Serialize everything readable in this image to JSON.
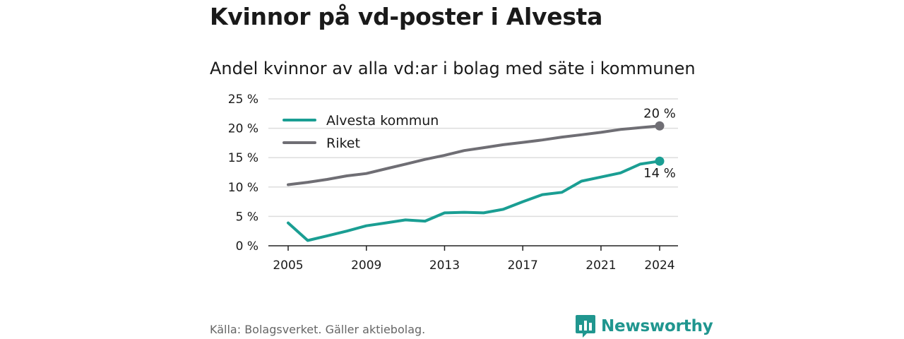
{
  "title": "Kvinnor på vd-poster i Alvesta",
  "subtitle": "Andel kvinnor av alla vd:ar i bolag med säte i kommunen",
  "source": "Källa: Bolagsverket. Gäller aktiebolag.",
  "brand": "Newsworthy",
  "colors": {
    "alvesta": "#1a9e93",
    "riket": "#6f6e74",
    "grid": "#dddddd",
    "axis": "#222222",
    "brand": "#20968f"
  },
  "chart_data": {
    "type": "line",
    "x": [
      2005,
      2006,
      2007,
      2008,
      2009,
      2010,
      2011,
      2012,
      2013,
      2014,
      2015,
      2016,
      2017,
      2018,
      2019,
      2020,
      2021,
      2022,
      2023,
      2024
    ],
    "series": [
      {
        "name": "Alvesta kommun",
        "color": "#1a9e93",
        "values": [
          3.9,
          0.9,
          1.7,
          2.5,
          3.4,
          3.9,
          4.4,
          4.2,
          5.6,
          5.7,
          5.6,
          6.2,
          7.5,
          8.7,
          9.1,
          11.0,
          11.7,
          12.4,
          13.9,
          14.4
        ],
        "end_label": "14 %"
      },
      {
        "name": "Riket",
        "color": "#6f6e74",
        "values": [
          10.4,
          10.8,
          11.3,
          11.9,
          12.3,
          13.1,
          13.9,
          14.7,
          15.4,
          16.2,
          16.7,
          17.2,
          17.6,
          18.0,
          18.5,
          18.9,
          19.3,
          19.8,
          20.1,
          20.4
        ],
        "end_label": "20 %"
      }
    ],
    "ylim": [
      0,
      25
    ],
    "yticks": [
      0,
      5,
      10,
      15,
      20,
      25
    ],
    "ytick_labels": [
      "0 %",
      "5 %",
      "10 %",
      "15 %",
      "20 %",
      "25 %"
    ],
    "xticks": [
      2005,
      2009,
      2013,
      2017,
      2021,
      2024
    ],
    "xtick_labels": [
      "2005",
      "2009",
      "2013",
      "2017",
      "2021",
      "2024"
    ],
    "xlim": [
      2005,
      2024
    ],
    "grid": true,
    "legend": {
      "placement": "top-left",
      "entries": [
        "Alvesta kommun",
        "Riket"
      ]
    }
  }
}
